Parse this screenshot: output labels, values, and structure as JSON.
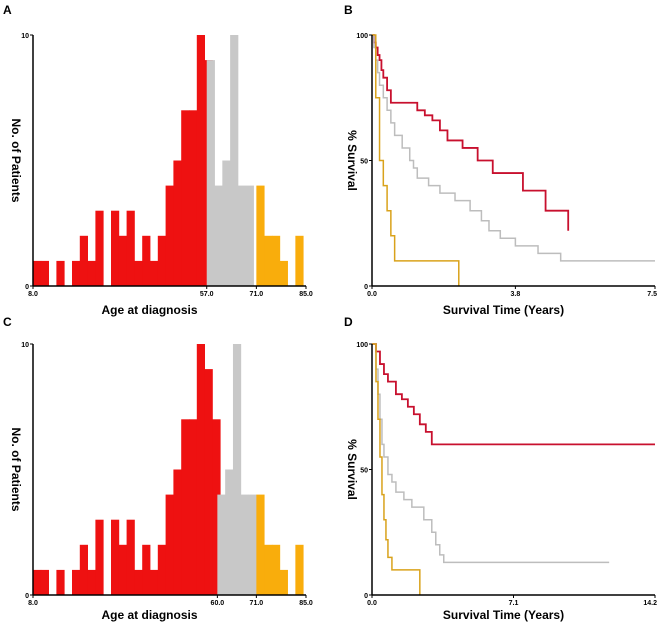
{
  "colors": {
    "red": "#ee1111",
    "gray": "#c8c8c8",
    "orange": "#f9ad0c",
    "line_red": "#c8102e",
    "line_gray": "#bdbdbd",
    "line_orange": "#d9a21b"
  },
  "chart_data": [
    {
      "panel": "A",
      "type": "bar",
      "title": "",
      "xlabel": "Age at diagnosis",
      "ylabel": "No. of Patients",
      "xlim": [
        8,
        85
      ],
      "ylim": [
        0,
        10
      ],
      "x_ticks": [
        "8.0",
        "57.0",
        "71.0",
        "85.0"
      ],
      "y_ticks": [
        "0",
        "10"
      ],
      "bin_width": 2.2,
      "bins": [
        {
          "x": 8.0,
          "y": 1,
          "group": "red"
        },
        {
          "x": 10.2,
          "y": 1,
          "group": "red"
        },
        {
          "x": 12.4,
          "y": 0,
          "group": "red"
        },
        {
          "x": 14.6,
          "y": 1,
          "group": "red"
        },
        {
          "x": 16.8,
          "y": 0,
          "group": "red"
        },
        {
          "x": 19.0,
          "y": 1,
          "group": "red"
        },
        {
          "x": 21.2,
          "y": 2,
          "group": "red"
        },
        {
          "x": 23.4,
          "y": 1,
          "group": "red"
        },
        {
          "x": 25.6,
          "y": 3,
          "group": "red"
        },
        {
          "x": 27.8,
          "y": 0,
          "group": "red"
        },
        {
          "x": 30.0,
          "y": 3,
          "group": "red"
        },
        {
          "x": 32.2,
          "y": 2,
          "group": "red"
        },
        {
          "x": 34.4,
          "y": 3,
          "group": "red"
        },
        {
          "x": 36.6,
          "y": 1,
          "group": "red"
        },
        {
          "x": 38.8,
          "y": 2,
          "group": "red"
        },
        {
          "x": 41.0,
          "y": 1,
          "group": "red"
        },
        {
          "x": 43.2,
          "y": 2,
          "group": "red"
        },
        {
          "x": 45.4,
          "y": 4,
          "group": "red"
        },
        {
          "x": 47.6,
          "y": 5,
          "group": "red"
        },
        {
          "x": 49.8,
          "y": 7,
          "group": "red"
        },
        {
          "x": 52.0,
          "y": 7,
          "group": "red"
        },
        {
          "x": 54.2,
          "y": 10,
          "group": "red"
        },
        {
          "x": 56.4,
          "y": 9,
          "group": "red"
        },
        {
          "x": 57.0,
          "y": 9,
          "group": "gray"
        },
        {
          "x": 59.2,
          "y": 4,
          "group": "gray"
        },
        {
          "x": 61.4,
          "y": 5,
          "group": "gray"
        },
        {
          "x": 63.6,
          "y": 10,
          "group": "gray"
        },
        {
          "x": 65.8,
          "y": 4,
          "group": "gray"
        },
        {
          "x": 68.0,
          "y": 4,
          "group": "gray"
        },
        {
          "x": 71.0,
          "y": 4,
          "group": "orange"
        },
        {
          "x": 73.2,
          "y": 2,
          "group": "orange"
        },
        {
          "x": 75.4,
          "y": 2,
          "group": "orange"
        },
        {
          "x": 77.6,
          "y": 1,
          "group": "orange"
        },
        {
          "x": 79.8,
          "y": 0,
          "group": "orange"
        },
        {
          "x": 82.0,
          "y": 2,
          "group": "orange"
        }
      ]
    },
    {
      "panel": "B",
      "type": "line",
      "title": "",
      "xlabel": "Survival Time (Years)",
      "ylabel": "% Survival",
      "xlim": [
        0,
        7.5
      ],
      "ylim": [
        0,
        100
      ],
      "x_ticks": [
        "0.0",
        "3.8",
        "7.5"
      ],
      "y_ticks": [
        "0",
        "50",
        "100"
      ],
      "series": [
        {
          "name": "red",
          "x": [
            0,
            0.05,
            0.1,
            0.15,
            0.2,
            0.25,
            0.3,
            0.4,
            0.5,
            1.0,
            1.2,
            1.4,
            1.6,
            1.8,
            2.0,
            2.4,
            2.8,
            3.2,
            3.8,
            4.0,
            4.6,
            5.2
          ],
          "y": [
            100,
            97,
            95,
            92,
            90,
            86,
            83,
            78,
            73,
            73,
            70,
            68,
            66,
            62,
            58,
            55,
            50,
            45,
            45,
            38,
            30,
            22
          ]
        },
        {
          "name": "gray",
          "x": [
            0,
            0.05,
            0.1,
            0.15,
            0.2,
            0.3,
            0.4,
            0.5,
            0.6,
            0.8,
            1.0,
            1.1,
            1.2,
            1.5,
            1.8,
            2.2,
            2.6,
            2.9,
            3.1,
            3.4,
            3.8,
            4.4,
            5.0,
            7.5
          ],
          "y": [
            100,
            95,
            90,
            85,
            80,
            75,
            70,
            65,
            60,
            55,
            50,
            47,
            43,
            40,
            37,
            34,
            30,
            26,
            22,
            19,
            16,
            13,
            10,
            10
          ]
        },
        {
          "name": "orange",
          "x": [
            0,
            0.1,
            0.2,
            0.3,
            0.4,
            0.5,
            0.6,
            0.7,
            2.3
          ],
          "y": [
            100,
            75,
            50,
            40,
            30,
            20,
            10,
            10,
            0
          ]
        }
      ]
    },
    {
      "panel": "C",
      "type": "bar",
      "title": "",
      "xlabel": "Age at diagnosis",
      "ylabel": "No. of Patients",
      "xlim": [
        8,
        85
      ],
      "ylim": [
        0,
        10
      ],
      "x_ticks": [
        "8.0",
        "60.0",
        "71.0",
        "85.0"
      ],
      "y_ticks": [
        "0",
        "10"
      ],
      "bin_width": 2.2,
      "bins": [
        {
          "x": 8.0,
          "y": 1,
          "group": "red"
        },
        {
          "x": 10.2,
          "y": 1,
          "group": "red"
        },
        {
          "x": 12.4,
          "y": 0,
          "group": "red"
        },
        {
          "x": 14.6,
          "y": 1,
          "group": "red"
        },
        {
          "x": 16.8,
          "y": 0,
          "group": "red"
        },
        {
          "x": 19.0,
          "y": 1,
          "group": "red"
        },
        {
          "x": 21.2,
          "y": 2,
          "group": "red"
        },
        {
          "x": 23.4,
          "y": 1,
          "group": "red"
        },
        {
          "x": 25.6,
          "y": 3,
          "group": "red"
        },
        {
          "x": 27.8,
          "y": 0,
          "group": "red"
        },
        {
          "x": 30.0,
          "y": 3,
          "group": "red"
        },
        {
          "x": 32.2,
          "y": 2,
          "group": "red"
        },
        {
          "x": 34.4,
          "y": 3,
          "group": "red"
        },
        {
          "x": 36.6,
          "y": 1,
          "group": "red"
        },
        {
          "x": 38.8,
          "y": 2,
          "group": "red"
        },
        {
          "x": 41.0,
          "y": 1,
          "group": "red"
        },
        {
          "x": 43.2,
          "y": 2,
          "group": "red"
        },
        {
          "x": 45.4,
          "y": 4,
          "group": "red"
        },
        {
          "x": 47.6,
          "y": 5,
          "group": "red"
        },
        {
          "x": 49.8,
          "y": 7,
          "group": "red"
        },
        {
          "x": 52.0,
          "y": 7,
          "group": "red"
        },
        {
          "x": 54.2,
          "y": 10,
          "group": "red"
        },
        {
          "x": 56.4,
          "y": 9,
          "group": "red"
        },
        {
          "x": 58.6,
          "y": 7,
          "group": "red"
        },
        {
          "x": 60.0,
          "y": 4,
          "group": "gray"
        },
        {
          "x": 62.2,
          "y": 5,
          "group": "gray"
        },
        {
          "x": 64.4,
          "y": 10,
          "group": "gray"
        },
        {
          "x": 66.6,
          "y": 4,
          "group": "gray"
        },
        {
          "x": 68.8,
          "y": 4,
          "group": "gray"
        },
        {
          "x": 71.0,
          "y": 4,
          "group": "orange"
        },
        {
          "x": 73.2,
          "y": 2,
          "group": "orange"
        },
        {
          "x": 75.4,
          "y": 2,
          "group": "orange"
        },
        {
          "x": 77.6,
          "y": 1,
          "group": "orange"
        },
        {
          "x": 79.8,
          "y": 0,
          "group": "orange"
        },
        {
          "x": 82.0,
          "y": 2,
          "group": "orange"
        }
      ]
    },
    {
      "panel": "D",
      "type": "line",
      "title": "",
      "xlabel": "Survival Time (Years)",
      "ylabel": "% Survival",
      "xlim": [
        0,
        14.2
      ],
      "ylim": [
        0,
        100
      ],
      "x_ticks": [
        "0.0",
        "7.1",
        "14.2"
      ],
      "y_ticks": [
        "0",
        "50",
        "100"
      ],
      "series": [
        {
          "name": "red",
          "x": [
            0,
            0.2,
            0.4,
            0.6,
            0.8,
            1.0,
            1.2,
            1.5,
            1.8,
            2.1,
            2.4,
            2.7,
            3.0,
            14.2
          ],
          "y": [
            100,
            97,
            92,
            88,
            85,
            85,
            80,
            78,
            75,
            72,
            68,
            65,
            60,
            60
          ]
        },
        {
          "name": "gray",
          "x": [
            0,
            0.2,
            0.3,
            0.4,
            0.5,
            0.6,
            0.8,
            1.0,
            1.2,
            1.4,
            1.6,
            2.0,
            2.6,
            3.0,
            3.2,
            3.4,
            3.6,
            11.9
          ],
          "y": [
            100,
            90,
            80,
            70,
            60,
            55,
            48,
            45,
            41,
            41,
            38,
            35,
            30,
            25,
            20,
            16,
            13,
            13
          ]
        },
        {
          "name": "orange",
          "x": [
            0,
            0.2,
            0.3,
            0.4,
            0.5,
            0.6,
            0.7,
            0.8,
            1.0,
            2.4
          ],
          "y": [
            100,
            85,
            70,
            55,
            40,
            30,
            22,
            15,
            10,
            0
          ]
        }
      ]
    }
  ]
}
